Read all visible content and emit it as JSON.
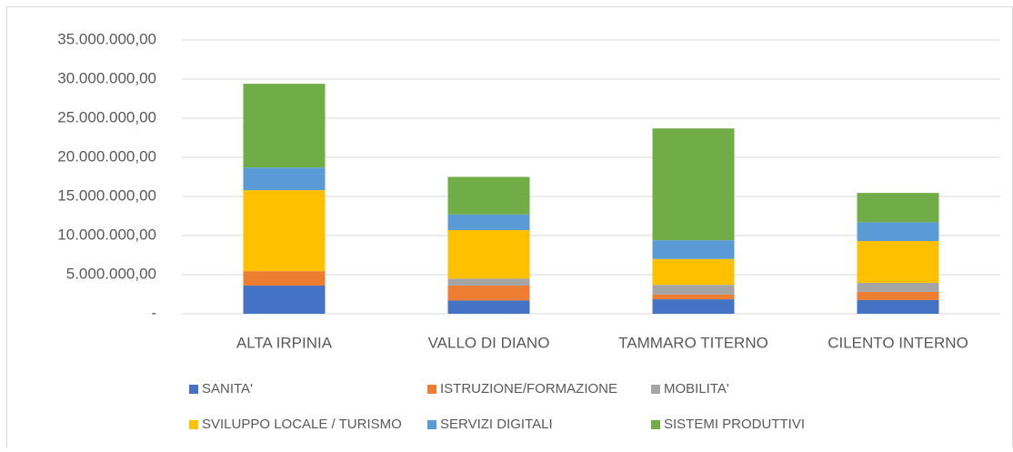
{
  "chart_data": {
    "type": "stacked_bar",
    "categories": [
      "ALTA IRPINIA",
      "VALLO DI DIANO",
      "TAMMARO TITERNO",
      "CILENTO INTERNO"
    ],
    "series": [
      {
        "name": "SANITA'",
        "color": "#4472c4",
        "values": [
          3600000,
          1700000,
          1850000,
          1750000
        ]
      },
      {
        "name": "ISTRUZIONE/FORMAZIONE",
        "color": "#ed7d31",
        "values": [
          1850000,
          1900000,
          600000,
          1050000
        ]
      },
      {
        "name": "MOBILITA'",
        "color": "#a5a5a5",
        "values": [
          0,
          900000,
          1250000,
          1150000
        ]
      },
      {
        "name": "SVILUPPO LOCALE / TURISMO",
        "color": "#ffc000",
        "values": [
          10350000,
          6200000,
          3300000,
          5350000
        ]
      },
      {
        "name": "SERVIZI DIGITALI",
        "color": "#5b9bd5",
        "values": [
          2900000,
          2000000,
          2400000,
          2400000
        ]
      },
      {
        "name": "SISTEMI PRODUTTIVI",
        "color": "#70ad47",
        "values": [
          10700000,
          4800000,
          14300000,
          3750000
        ]
      }
    ],
    "ylim": [
      0,
      35000000
    ],
    "yticks": [
      {
        "value": 0,
        "label": "-"
      },
      {
        "value": 5000000,
        "label": "5.000.000,00"
      },
      {
        "value": 10000000,
        "label": "10.000.000,00"
      },
      {
        "value": 15000000,
        "label": "15.000.000,00"
      },
      {
        "value": 20000000,
        "label": "20.000.000,00"
      },
      {
        "value": 25000000,
        "label": "25.000.000,00"
      },
      {
        "value": 30000000,
        "label": "30.000.000,00"
      },
      {
        "value": 35000000,
        "label": "35.000.000,00"
      }
    ],
    "grid": true,
    "legend": "bottom"
  }
}
